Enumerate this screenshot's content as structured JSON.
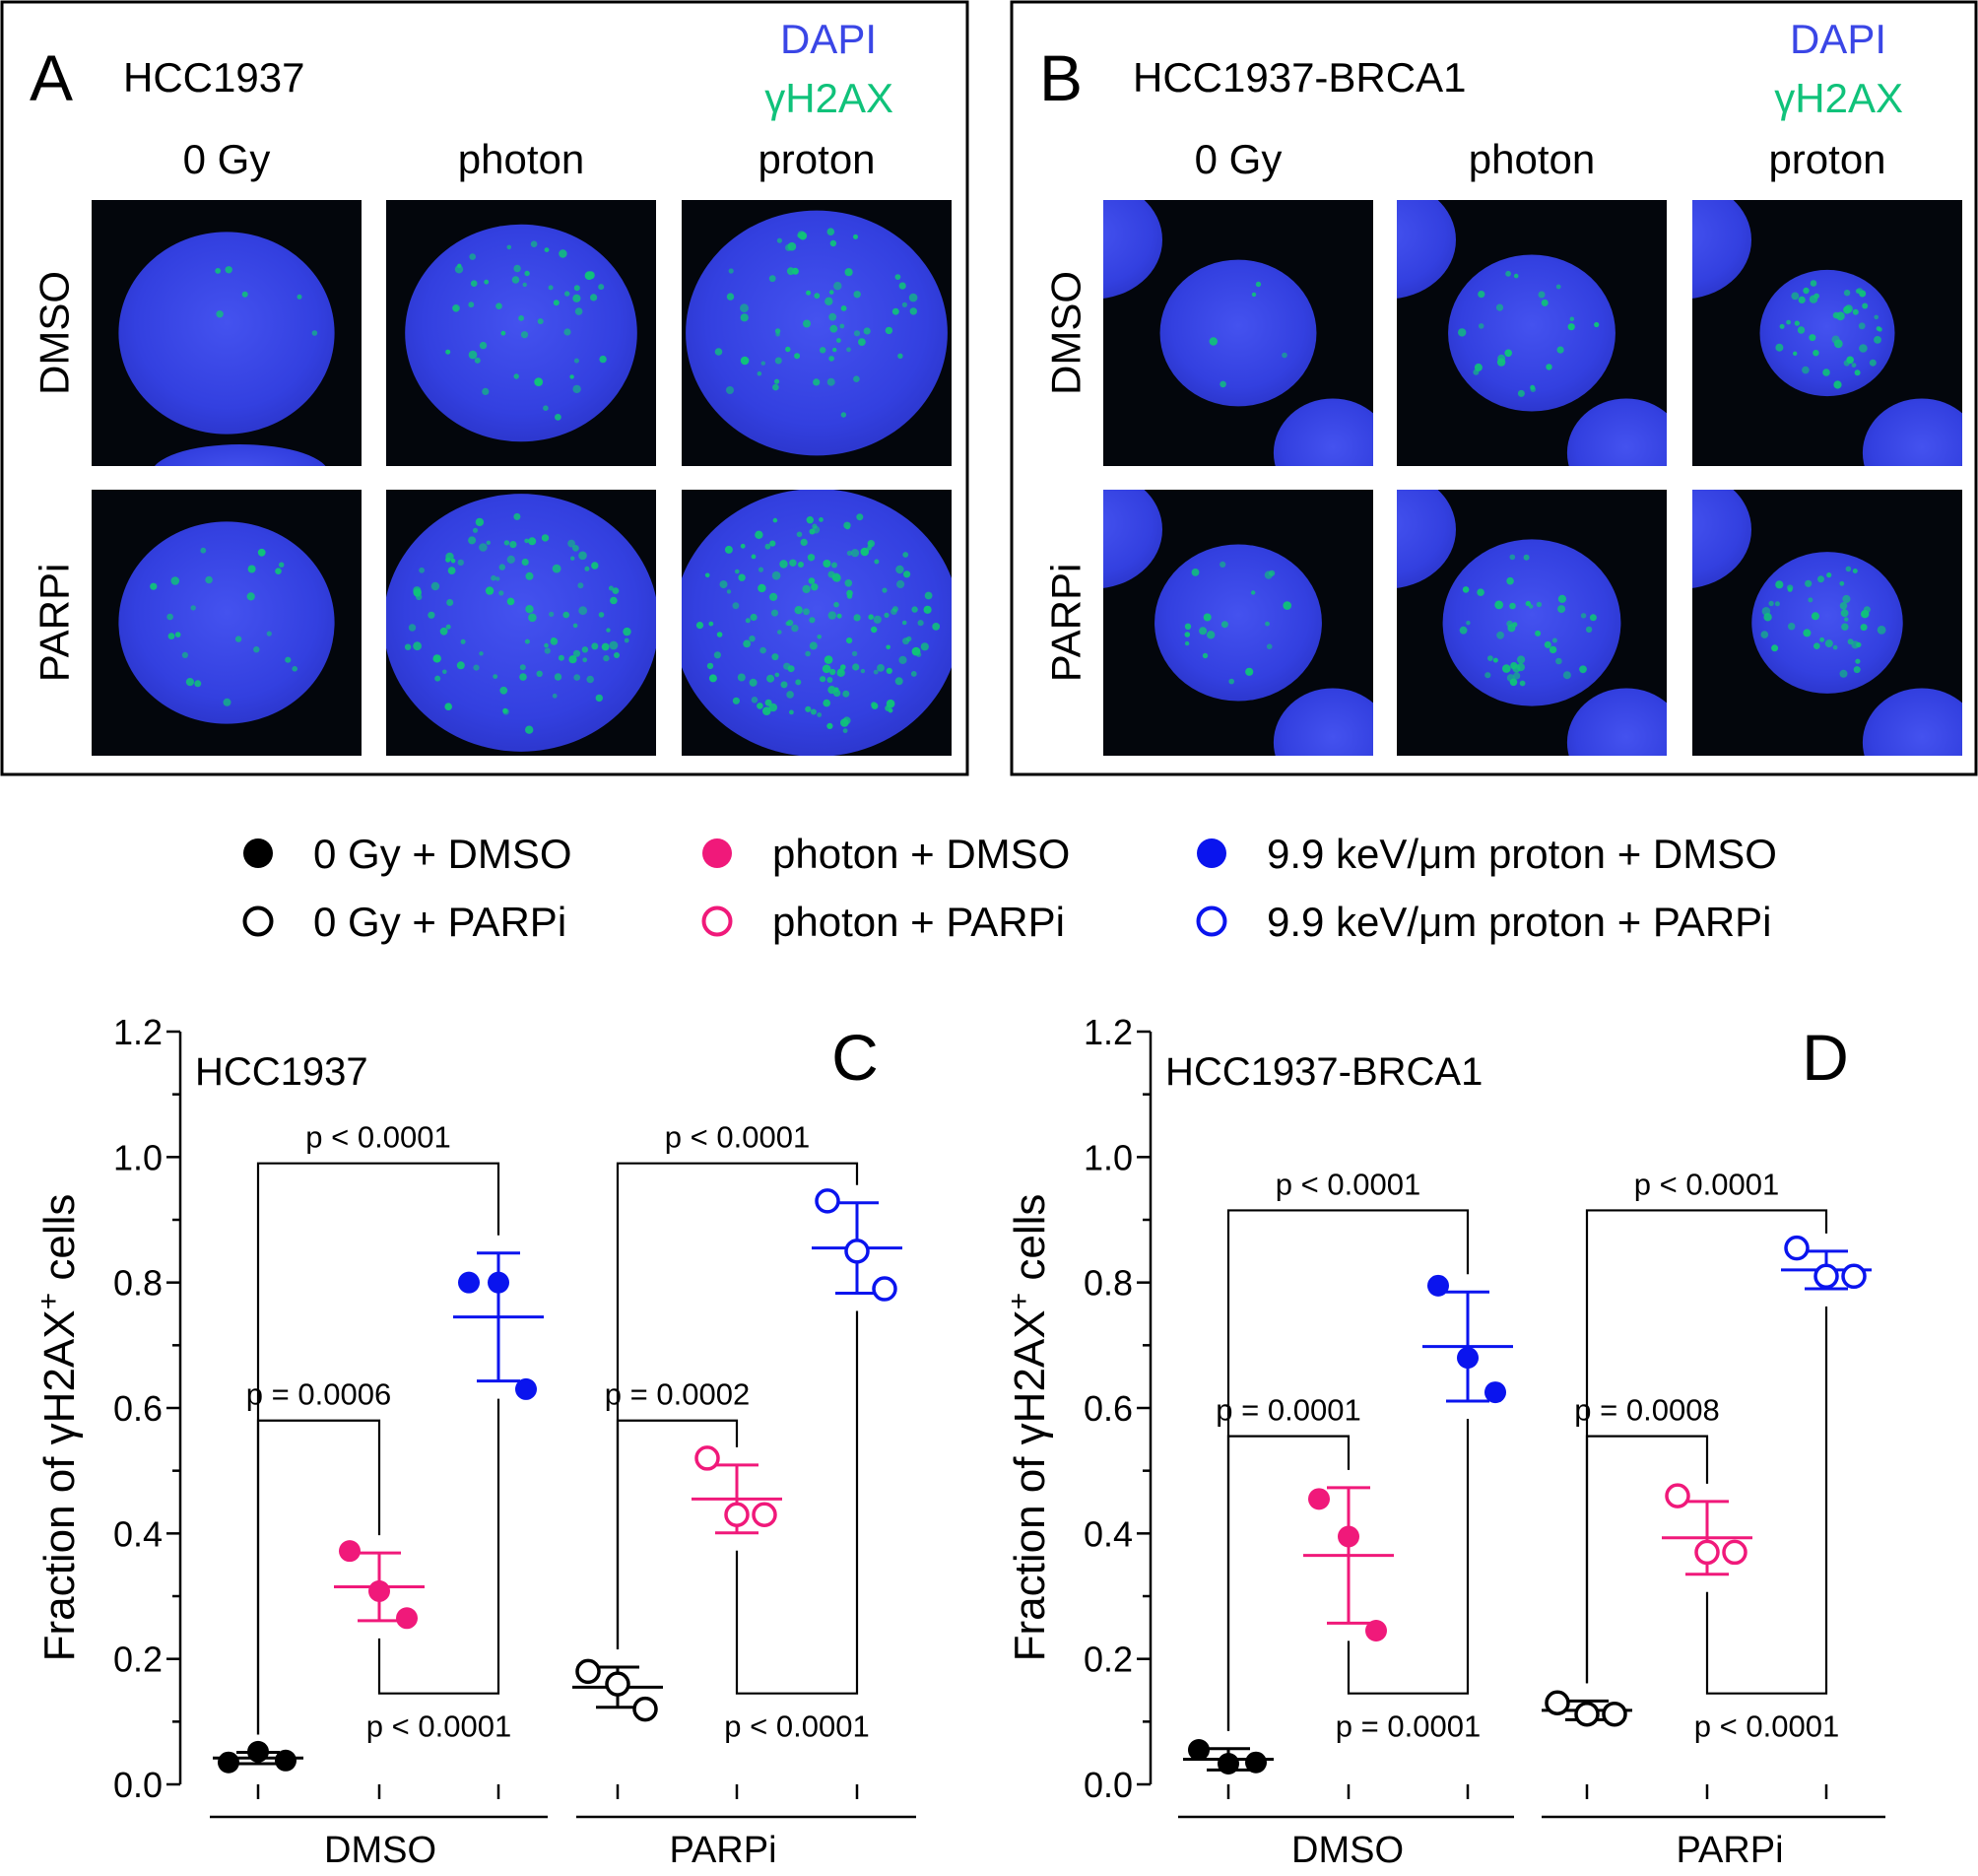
{
  "colors": {
    "black": "#000000",
    "pink": "#f0197a",
    "blue": "#0a14ee",
    "dapi": "#3a46e6",
    "gh2ax": "#10c27a"
  },
  "top_panels": [
    {
      "letter": "A",
      "cell_line": "HCC1937",
      "stain_1": "DAPI",
      "stain_2": "γH2AX",
      "columns": [
        "0 Gy",
        "photon",
        "proton"
      ],
      "rows": [
        "DMSO",
        "PARPi"
      ]
    },
    {
      "letter": "B",
      "cell_line": "HCC1937-BRCA1",
      "stain_1": "DAPI",
      "stain_2": "γH2AX",
      "columns": [
        "0 Gy",
        "photon",
        "proton"
      ],
      "rows": [
        "DMSO",
        "PARPi"
      ]
    }
  ],
  "legend": [
    {
      "label": "0 Gy + DMSO",
      "color": "#000000",
      "filled": true
    },
    {
      "label": "0 Gy + PARPi",
      "color": "#000000",
      "filled": false
    },
    {
      "label": "photon + DMSO",
      "color": "#f0197a",
      "filled": true
    },
    {
      "label": "photon + PARPi",
      "color": "#f0197a",
      "filled": false
    },
    {
      "label": "9.9 keV/μm proton + DMSO",
      "color": "#0a14ee",
      "filled": true
    },
    {
      "label": "9.9 keV/μm proton + PARPi",
      "color": "#0a14ee",
      "filled": false
    }
  ],
  "chart_data": [
    {
      "type": "scatter",
      "panel": "C",
      "title": "HCC1937",
      "ylabel": "Fraction of γH2AX",
      "ylabel_sup": "+",
      "ylabel_suffix": " cells",
      "ylim": [
        0,
        1.2
      ],
      "yticks": [
        "0.0",
        "0.2",
        "0.4",
        "0.6",
        "0.8",
        "1.0",
        "1.2"
      ],
      "groups": [
        "DMSO",
        "PARPi"
      ],
      "series": [
        {
          "condition": "0 Gy + DMSO",
          "color": "#000000",
          "filled": true,
          "points": [
            0.035,
            0.052,
            0.038
          ],
          "mean": 0.042,
          "sd": 0.009
        },
        {
          "condition": "photon + DMSO",
          "color": "#f0197a",
          "filled": true,
          "points": [
            0.372,
            0.308,
            0.265
          ],
          "mean": 0.315,
          "sd": 0.054
        },
        {
          "condition": "9.9 keV/μm proton + DMSO",
          "color": "#0a14ee",
          "filled": true,
          "points": [
            0.8,
            0.8,
            0.63
          ],
          "mean": 0.745,
          "sd": 0.102
        },
        {
          "condition": "0 Gy + PARPi",
          "color": "#000000",
          "filled": false,
          "points": [
            0.18,
            0.16,
            0.12
          ],
          "mean": 0.155,
          "sd": 0.032
        },
        {
          "condition": "photon + PARPi",
          "color": "#f0197a",
          "filled": false,
          "points": [
            0.52,
            0.43,
            0.43
          ],
          "mean": 0.455,
          "sd": 0.054
        },
        {
          "condition": "9.9 keV/μm proton + PARPi",
          "color": "#0a14ee",
          "filled": false,
          "points": [
            0.93,
            0.85,
            0.79
          ],
          "mean": 0.855,
          "sd": 0.072
        }
      ],
      "comparisons": [
        {
          "label": "p = 0.0006",
          "from": 0,
          "to": 1,
          "position": "above",
          "level": 0.58
        },
        {
          "label": "p < 0.0001",
          "from": 0,
          "to": 2,
          "position": "above",
          "level": 0.99
        },
        {
          "label": "p < 0.0001",
          "from": 1,
          "to": 2,
          "position": "below",
          "level": 0.145
        },
        {
          "label": "p = 0.0002",
          "from": 3,
          "to": 4,
          "position": "above",
          "level": 0.58
        },
        {
          "label": "p < 0.0001",
          "from": 3,
          "to": 5,
          "position": "above",
          "level": 0.99
        },
        {
          "label": "p < 0.0001",
          "from": 4,
          "to": 5,
          "position": "below",
          "level": 0.145
        }
      ]
    },
    {
      "type": "scatter",
      "panel": "D",
      "title": "HCC1937-BRCA1",
      "ylabel": "Fraction of γH2AX",
      "ylabel_sup": "+",
      "ylabel_suffix": " cells",
      "ylim": [
        0,
        1.2
      ],
      "yticks": [
        "0.0",
        "0.2",
        "0.4",
        "0.6",
        "0.8",
        "1.0",
        "1.2"
      ],
      "groups": [
        "DMSO",
        "PARPi"
      ],
      "series": [
        {
          "condition": "0 Gy + DMSO",
          "color": "#000000",
          "filled": true,
          "points": [
            0.055,
            0.033,
            0.035
          ],
          "mean": 0.04,
          "sd": 0.017
        },
        {
          "condition": "photon + DMSO",
          "color": "#f0197a",
          "filled": true,
          "points": [
            0.455,
            0.395,
            0.245
          ],
          "mean": 0.365,
          "sd": 0.108
        },
        {
          "condition": "9.9 keV/μm proton + DMSO",
          "color": "#0a14ee",
          "filled": true,
          "points": [
            0.795,
            0.68,
            0.625
          ],
          "mean": 0.698,
          "sd": 0.087
        },
        {
          "condition": "0 Gy + PARPi",
          "color": "#000000",
          "filled": false,
          "points": [
            0.13,
            0.112,
            0.112
          ],
          "mean": 0.118,
          "sd": 0.015
        },
        {
          "condition": "photon + PARPi",
          "color": "#f0197a",
          "filled": false,
          "points": [
            0.46,
            0.37,
            0.37
          ],
          "mean": 0.393,
          "sd": 0.058
        },
        {
          "condition": "9.9 keV/μm proton + PARPi",
          "color": "#0a14ee",
          "filled": false,
          "points": [
            0.855,
            0.81,
            0.81
          ],
          "mean": 0.82,
          "sd": 0.03
        }
      ],
      "comparisons": [
        {
          "label": "p = 0.0001",
          "from": 0,
          "to": 1,
          "position": "above",
          "level": 0.555
        },
        {
          "label": "p < 0.0001",
          "from": 0,
          "to": 2,
          "position": "above",
          "level": 0.915
        },
        {
          "label": "p = 0.0001",
          "from": 1,
          "to": 2,
          "position": "below",
          "level": 0.145
        },
        {
          "label": "p = 0.0008",
          "from": 3,
          "to": 4,
          "position": "above",
          "level": 0.555
        },
        {
          "label": "p < 0.0001",
          "from": 3,
          "to": 5,
          "position": "above",
          "level": 0.915
        },
        {
          "label": "p < 0.0001",
          "from": 4,
          "to": 5,
          "position": "below",
          "level": 0.145
        }
      ]
    }
  ]
}
